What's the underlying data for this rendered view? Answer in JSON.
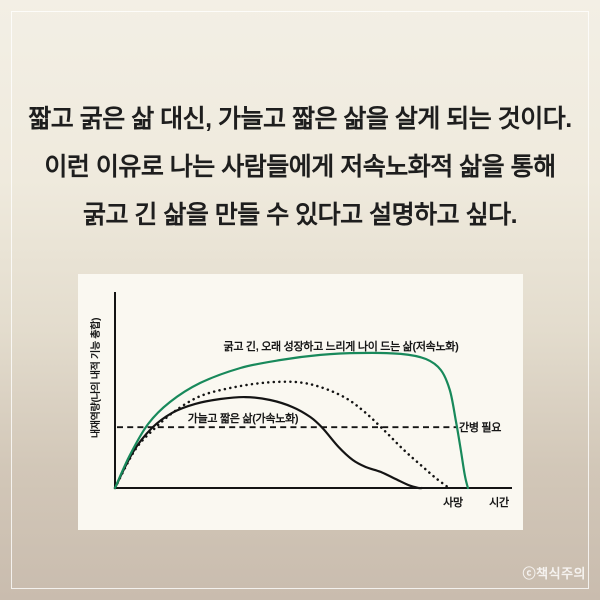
{
  "card": {
    "quote_lines": [
      "짧고 굵은 삶 대신, 가늘고 짧은 삶을 살게 되는 것이다.",
      "이런 이유로 나는 사람들에게 저속노화적 삶을 통해",
      "굵고 긴 삶을 만들 수 있다고 설명하고 싶다."
    ],
    "watermark": "ⓒ책식주의"
  },
  "colors": {
    "background_top": "#f3efe5",
    "background_bottom": "#c9bcae",
    "frame_line": "#ffffff",
    "panel_background": "#faf8f1",
    "text": "#1e1e1e",
    "slow_aging_green": "#18895b",
    "curve_black": "#141414"
  },
  "chart_data": {
    "type": "line",
    "title": "",
    "ylabel": "내재역량(나의 내적 기능 총합)",
    "xlabel": "시간",
    "axis": {
      "x_range": [
        0,
        100
      ],
      "y_range": [
        0,
        100
      ],
      "grid": false,
      "ticks": "none"
    },
    "x_axis_annotations": [
      {
        "label": "사망",
        "x": 86
      }
    ],
    "threshold_line": {
      "label": "간병 필요",
      "y": 31,
      "x_start": 0.5,
      "x_end": 87,
      "style": "dashed"
    },
    "series": [
      {
        "name": "굵고 긴, 오래 성장하고 느리게 나이 드는 삶(저속노화)",
        "color": "#18895b",
        "style": "solid",
        "x": [
          0,
          3.8,
          8.4,
          14,
          21.7,
          31.9,
          42.1,
          52.3,
          62.5,
          72.7,
          79.1,
          82.9,
          85.2,
          86.7,
          88,
          89,
          89.8
        ],
        "y": [
          0,
          16.8,
          32.6,
          43.9,
          53.6,
          61.2,
          65.3,
          67.9,
          68.9,
          68.4,
          65.8,
          60.2,
          50,
          34.7,
          19.4,
          6.6,
          0
        ]
      },
      {
        "name": "가늘고 짧은 삶(가속노화)",
        "color": "#141414",
        "style": "solid",
        "x": [
          0,
          4.6,
          9.4,
          14.5,
          20.4,
          26.8,
          33.2,
          39.5,
          45.2,
          49.7,
          52.8,
          56.9,
          60.5,
          63.8,
          67.6,
          71.4,
          74.7,
          77.3,
          78.1
        ],
        "y": [
          0,
          18.4,
          30.6,
          38.3,
          42.9,
          45.4,
          46.4,
          44.9,
          41.3,
          36.2,
          30.6,
          20.9,
          14.3,
          10.7,
          8.2,
          4.6,
          1.5,
          0,
          0
        ]
      },
      {
        "name": "",
        "color": "#141414",
        "style": "dotted",
        "x": [
          0,
          5.1,
          10.2,
          15.3,
          21.7,
          29.3,
          37.5,
          45.9,
          52.3,
          58.7,
          63.8,
          68.9,
          73.5,
          77.8,
          81.6,
          85
        ],
        "y": [
          0,
          19.4,
          30.6,
          39.3,
          46.9,
          51,
          53.6,
          54.1,
          51.5,
          45.9,
          38.3,
          28.6,
          19.4,
          11.7,
          5.1,
          0
        ]
      }
    ]
  }
}
